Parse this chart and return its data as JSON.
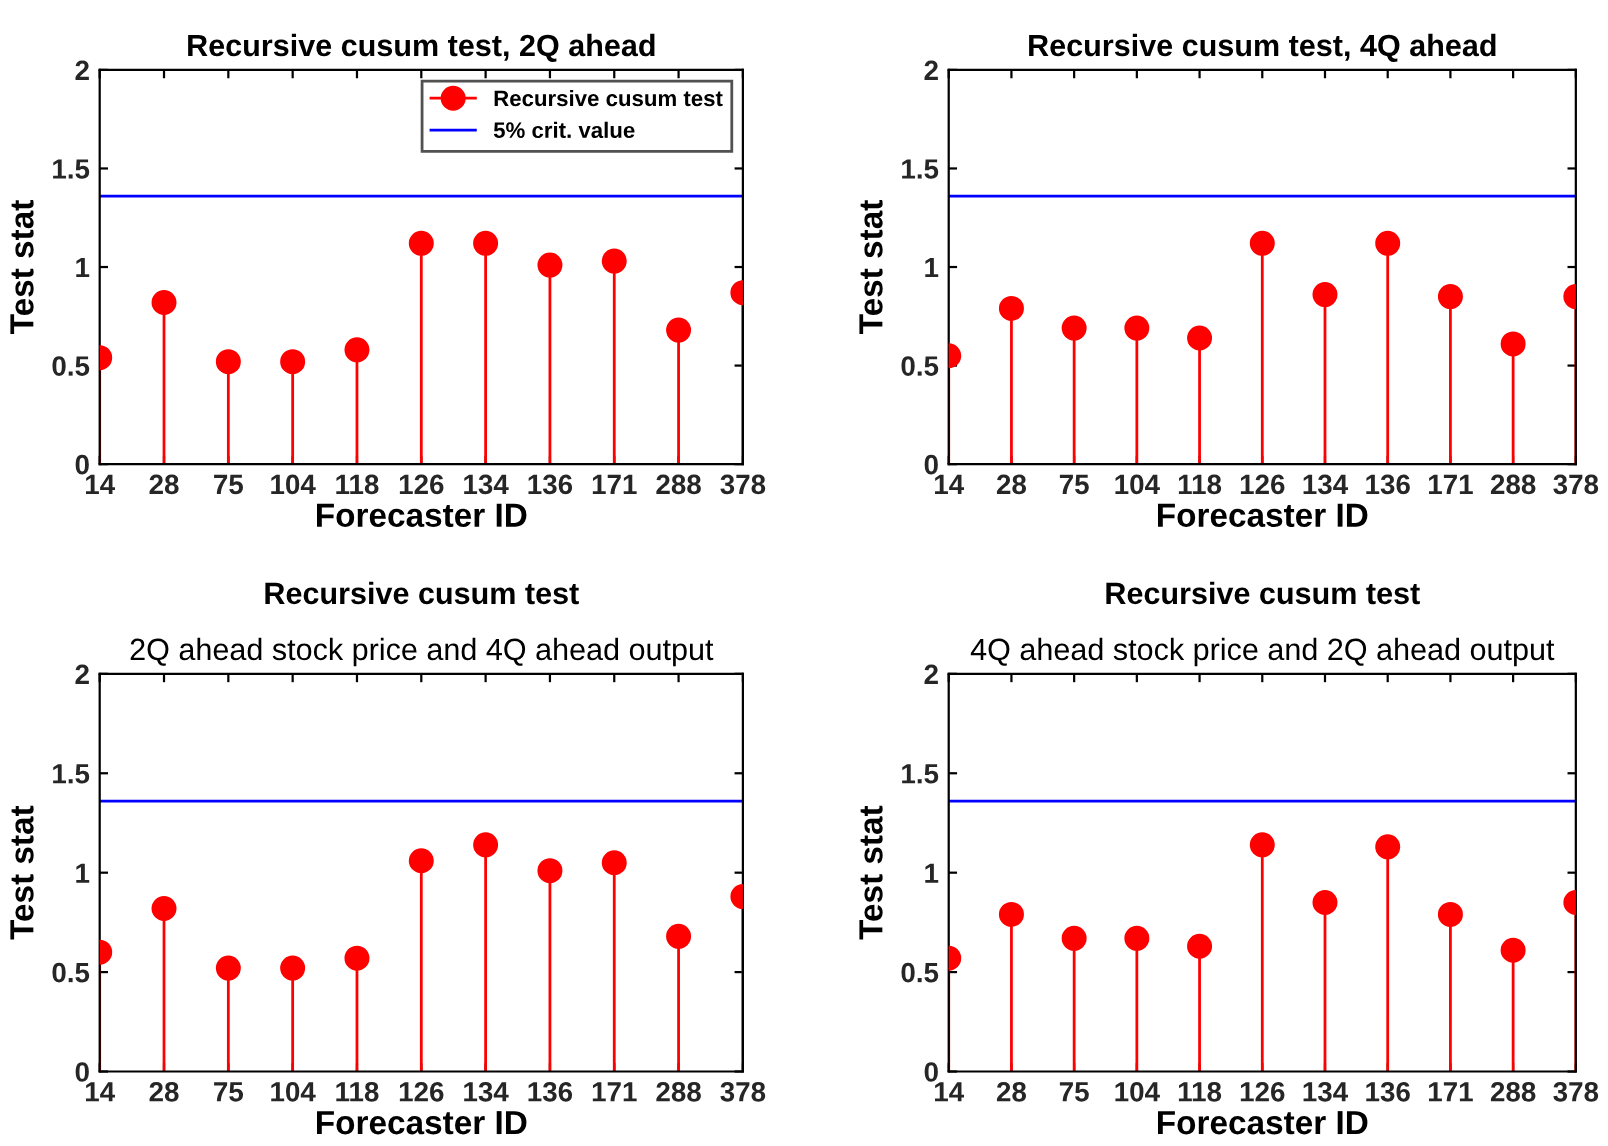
{
  "chart_data": [
    {
      "type": "lollipop",
      "title": "Recursive cusum test, 2Q ahead",
      "xlabel": "Forecaster ID",
      "ylabel": "Test stat",
      "categories": [
        "14",
        "28",
        "75",
        "104",
        "118",
        "126",
        "134",
        "136",
        "171",
        "288",
        "378"
      ],
      "series": [
        {
          "name": "Recursive cusum test",
          "color": "#ff0000",
          "values": [
            0.54,
            0.82,
            0.52,
            0.52,
            0.58,
            1.12,
            1.12,
            1.01,
            1.03,
            0.68,
            0.87
          ]
        }
      ],
      "ref_lines": [
        {
          "axis": "y",
          "value": 1.36,
          "label": "5% crit. value",
          "color": "#0000ff"
        }
      ],
      "ylim": [
        0,
        2
      ],
      "yticks": [
        0,
        0.5,
        1,
        1.5,
        2
      ],
      "marker": "circle",
      "legend": "top right"
    },
    {
      "type": "lollipop",
      "title": "Recursive cusum test, 4Q ahead",
      "xlabel": "Forecaster ID",
      "ylabel": "Test stat",
      "categories": [
        "14",
        "28",
        "75",
        "104",
        "118",
        "126",
        "134",
        "136",
        "171",
        "288",
        "378"
      ],
      "series": [
        {
          "color": "#ff0000",
          "values": [
            0.55,
            0.79,
            0.69,
            0.69,
            0.64,
            1.12,
            0.86,
            1.12,
            0.85,
            0.61,
            0.85
          ]
        }
      ],
      "ref_lines": [
        {
          "axis": "y",
          "value": 1.36,
          "color": "#0000ff"
        }
      ],
      "ylim": [
        0,
        2
      ],
      "yticks": [
        0,
        0.5,
        1,
        1.5,
        2
      ],
      "marker": "circle"
    },
    {
      "type": "lollipop",
      "title": "Recursive cusum test",
      "subtitle": "2Q ahead stock price and 4Q ahead output",
      "xlabel": "Forecaster ID",
      "ylabel": "Test stat",
      "categories": [
        "14",
        "28",
        "75",
        "104",
        "118",
        "126",
        "134",
        "136",
        "171",
        "288",
        "378"
      ],
      "series": [
        {
          "color": "#ff0000",
          "values": [
            0.6,
            0.82,
            0.52,
            0.52,
            0.57,
            1.06,
            1.14,
            1.01,
            1.05,
            0.68,
            0.88
          ]
        }
      ],
      "ref_lines": [
        {
          "axis": "y",
          "value": 1.36,
          "color": "#0000ff"
        }
      ],
      "ylim": [
        0,
        2
      ],
      "yticks": [
        0,
        0.5,
        1,
        1.5,
        2
      ],
      "marker": "circle"
    },
    {
      "type": "lollipop",
      "title": "Recursive cusum test",
      "subtitle": "4Q ahead stock price and 2Q ahead output",
      "xlabel": "Forecaster ID",
      "ylabel": "Test stat",
      "categories": [
        "14",
        "28",
        "75",
        "104",
        "118",
        "126",
        "134",
        "136",
        "171",
        "288",
        "378"
      ],
      "series": [
        {
          "color": "#ff0000",
          "values": [
            0.57,
            0.79,
            0.67,
            0.67,
            0.63,
            1.14,
            0.85,
            1.13,
            0.79,
            0.61,
            0.85
          ]
        }
      ],
      "ref_lines": [
        {
          "axis": "y",
          "value": 1.36,
          "color": "#0000ff"
        }
      ],
      "ylim": [
        0,
        2
      ],
      "yticks": [
        0,
        0.5,
        1,
        1.5,
        2
      ],
      "marker": "circle"
    }
  ]
}
